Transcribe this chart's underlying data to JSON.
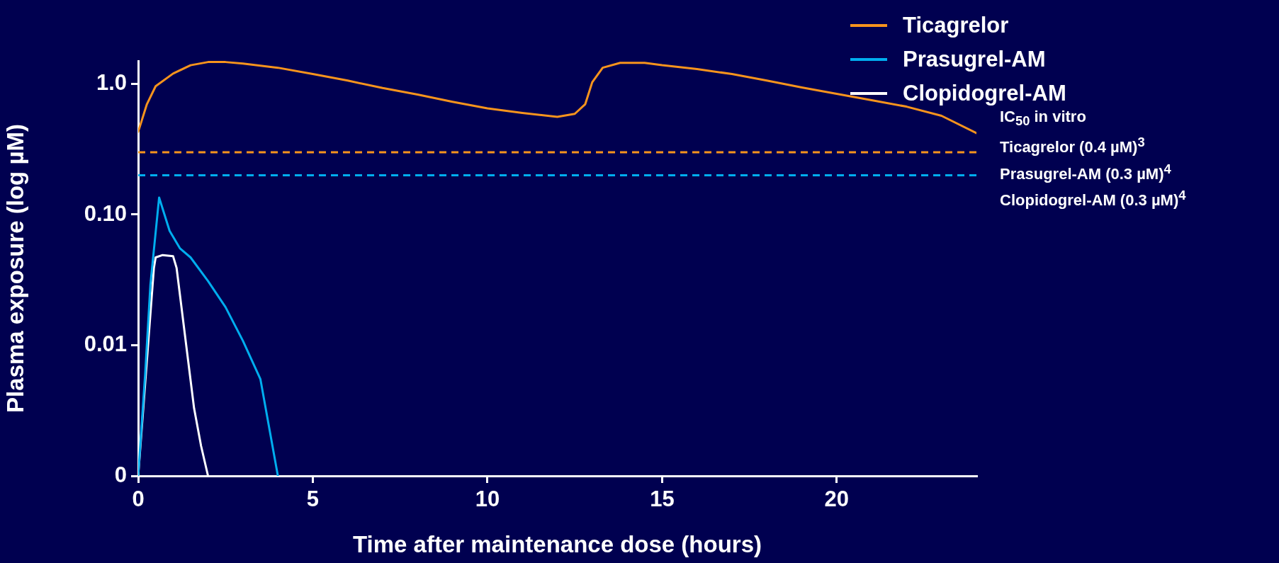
{
  "chart_data": {
    "type": "line",
    "xlabel": "Time after maintenance dose (hours)",
    "ylabel": "Plasma exposure (log µM)",
    "log": "y",
    "xlim": [
      0,
      24
    ],
    "xticks": [
      0,
      5,
      10,
      15,
      20
    ],
    "ylim": [
      0.001,
      1.5
    ],
    "yticks": [
      {
        "value": 0.001,
        "label": "0"
      },
      {
        "value": 0.01,
        "label": "0.01"
      },
      {
        "value": 0.1,
        "label": "0.10"
      },
      {
        "value": 1,
        "label": "1.0"
      }
    ],
    "legend": "top right",
    "marker": "none",
    "line_style": "solid",
    "series": [
      {
        "name": "Ticagrelor",
        "color": "#f7941d",
        "x": [
          0,
          0.25,
          0.5,
          1,
          1.5,
          2,
          2.5,
          3,
          4,
          5,
          6,
          7,
          8,
          9,
          10,
          11,
          12,
          12.5,
          12.8,
          13,
          13.3,
          13.8,
          14.5,
          15,
          16,
          17,
          18,
          19,
          20,
          21,
          22,
          23,
          24
        ],
        "values": [
          0.43,
          0.7,
          0.96,
          1.2,
          1.39,
          1.47,
          1.47,
          1.43,
          1.33,
          1.19,
          1.06,
          0.93,
          0.83,
          0.73,
          0.65,
          0.6,
          0.56,
          0.59,
          0.7,
          1.03,
          1.33,
          1.45,
          1.45,
          1.39,
          1.3,
          1.19,
          1.06,
          0.94,
          0.84,
          0.75,
          0.67,
          0.57,
          0.42
        ]
      },
      {
        "name": "Prasugrel-AM",
        "color": "#00aeef",
        "x": [
          0,
          0.2,
          0.35,
          0.6,
          0.9,
          1.2,
          1.5,
          2,
          2.5,
          3,
          3.5,
          4
        ],
        "values": [
          0.001,
          0.006,
          0.029,
          0.135,
          0.075,
          0.055,
          0.047,
          0.031,
          0.0196,
          0.0108,
          0.0055,
          0.001
        ]
      },
      {
        "name": "Clopidogrel-AM",
        "color": "#ffffff",
        "x": [
          0,
          0.45,
          0.5,
          0.7,
          1.0,
          1.1,
          1.3,
          1.6,
          1.8,
          2.0
        ],
        "values": [
          0.001,
          0.039,
          0.047,
          0.049,
          0.048,
          0.039,
          0.0145,
          0.0033,
          0.0017,
          0.001
        ]
      }
    ],
    "ref_lines": [
      {
        "axis": "y",
        "value": 0.3,
        "color": "#f7941d",
        "line_style": "dashed"
      },
      {
        "axis": "y",
        "value": 0.2,
        "color": "#00aeef",
        "line_style": "dashed"
      }
    ],
    "annotations": [
      "IC$_{50}$ in vitro",
      "Ticagrelor (0.4 µM)$^{3}$",
      "Prasugrel-AM (0.3 µM)$^{4}$",
      "Clopidogrel-AM (0.3 µM)$^{4}$"
    ]
  }
}
